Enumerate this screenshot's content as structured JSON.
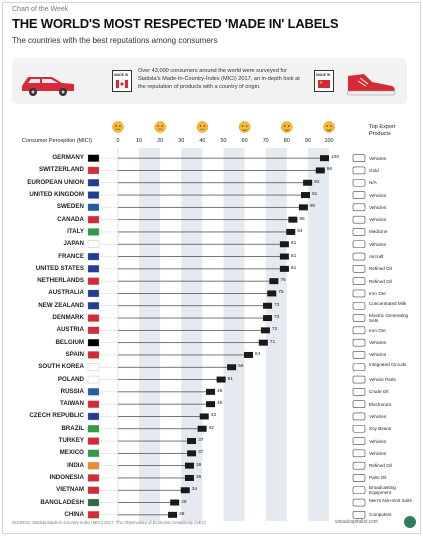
{
  "header": {
    "ribbon": "Chart of the Week",
    "title": "THE WORLD'S MOST RESPECTED 'MADE IN' LABELS",
    "subtitle": "The countries with the best reputations among consumers"
  },
  "intro": {
    "text": "Over 43,000 consumers around the world were surveyed for Statista's Made-In-Country-Index (MICI) 2017, an in-depth look at the reputation of products with a country of origin.",
    "label_left": "MADE IN",
    "label_right": "MADE IN"
  },
  "column_headers": {
    "perception": "Consumer Perception (MICI)",
    "exports": "Top Export Products"
  },
  "footer": {
    "source": "SOURCE: Statista Made-in-Country-Index (MICI) 2017, The Observatory of Economic Complexity (OEC)",
    "brand": "visualcapitalist.com"
  },
  "colors": {
    "bar": "#1a1a1a",
    "band": "#e5eaf0",
    "accent": "#d62a36"
  },
  "chart_data": {
    "type": "bar",
    "orientation": "horizontal",
    "title": "THE WORLD'S MOST RESPECTED 'MADE IN' LABELS",
    "xlabel": "Consumer Perception (MICI)",
    "ylabel": "",
    "xlim": [
      0,
      100
    ],
    "ticks": [
      "0",
      "10",
      "20",
      "30",
      "40",
      "50",
      "60",
      "70",
      "80",
      "90",
      "100"
    ],
    "categories": [
      "GERMANY",
      "SWITZERLAND",
      "EUROPEAN UNION",
      "UNITED KINGDOM",
      "SWEDEN",
      "CANADA",
      "ITALY",
      "JAPAN",
      "FRANCE",
      "UNITED STATES",
      "NETHERLANDS",
      "AUSTRALIA",
      "NEW ZEALAND",
      "DENMARK",
      "AUSTRIA",
      "BELGIUM",
      "SPAIN",
      "SOUTH KOREA",
      "POLAND",
      "RUSSIA",
      "TAIWAN",
      "CZECH REPUBLIC",
      "BRAZIL",
      "TURKEY",
      "MEXICO",
      "INDIA",
      "INDONESIA",
      "VIETNAM",
      "BANGLADESH",
      "CHINA"
    ],
    "values": [
      100,
      98,
      92,
      91,
      90,
      85,
      84,
      81,
      81,
      81,
      76,
      75,
      73,
      73,
      72,
      71,
      64,
      56,
      51,
      46,
      46,
      43,
      42,
      37,
      37,
      36,
      36,
      34,
      29,
      28
    ],
    "products": [
      "Vehicles",
      "Gold",
      "N/A",
      "Vehicles",
      "Vehicles",
      "Vehicles",
      "Medicine",
      "Vehicles",
      "Aircraft",
      "Refined Oil",
      "Refined Oil",
      "Iron Ore",
      "Concentrated Milk",
      "Electric Generating Sets",
      "Iron Ore",
      "Vehicles",
      "Vehicles",
      "Integrated Circuits",
      "Vehicle Parts",
      "Crude Oil",
      "Electronics",
      "Vehicles",
      "Soy Beans",
      "Vehicles",
      "Vehicles",
      "Refined Oil",
      "Palm Oil",
      "Broadcasting Equipment",
      "Men's Non-Knit Suits",
      "Computers"
    ],
    "product_icons": [
      "car-icon",
      "gold-icon",
      "none-icon",
      "car-icon",
      "car-icon",
      "car-icon",
      "medicine-icon",
      "car-icon",
      "plane-icon",
      "oil-icon",
      "oil-icon",
      "ore-icon",
      "milk-icon",
      "generator-icon",
      "ore-icon",
      "car-icon",
      "car-icon",
      "chip-icon",
      "car-icon",
      "oil-icon",
      "electronics-icon",
      "car-icon",
      "bean-icon",
      "car-icon",
      "car-icon",
      "oil-icon",
      "palm-icon",
      "broadcast-icon",
      "suit-icon",
      "computer-icon"
    ]
  }
}
